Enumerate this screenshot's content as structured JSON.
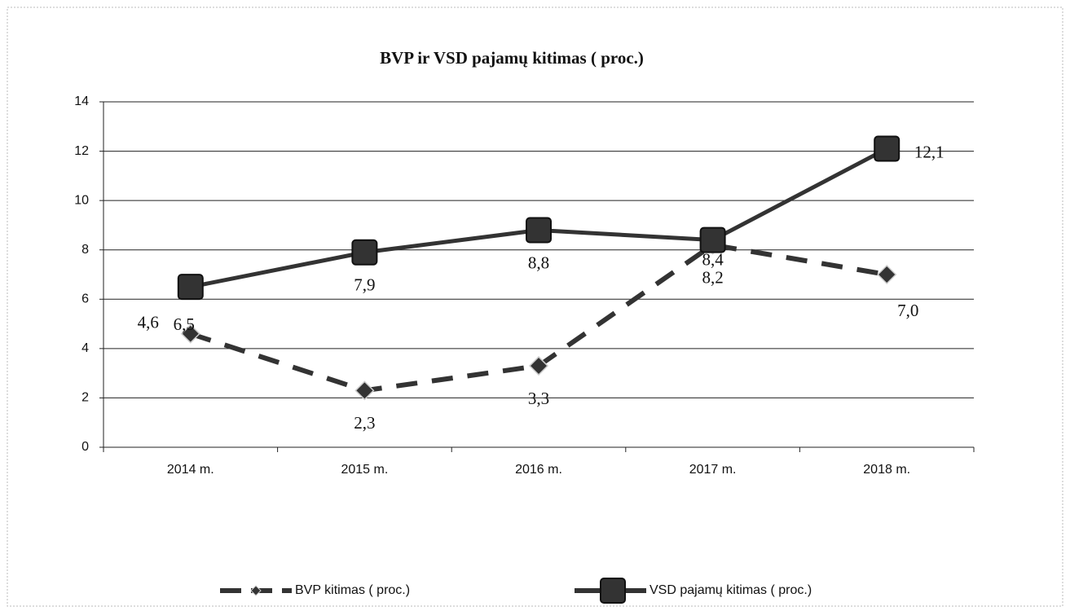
{
  "chart_data": {
    "type": "line",
    "title": "BVP  ir VSD pajamų kitimas ( proc.)",
    "categories": [
      "2014 m.",
      "2015 m.",
      "2016 m.",
      "2017 m.",
      "2018 m."
    ],
    "series": [
      {
        "name": "BVP kitimas ( proc.)",
        "color": "#333333",
        "line_style": "dashed",
        "marker": "diamond",
        "values": [
          4.6,
          2.3,
          3.3,
          8.2,
          7.0
        ],
        "value_labels": [
          "4,6",
          "2,3",
          "3,3",
          "8,2",
          "7,0"
        ]
      },
      {
        "name": "VSD pajamų kitimas ( proc.)",
        "color": "#333333",
        "line_style": "solid",
        "marker": "square",
        "values": [
          6.5,
          7.9,
          8.8,
          8.4,
          12.1
        ],
        "value_labels": [
          "6,5",
          "7,9",
          "8,8",
          "8,4",
          "12,1"
        ]
      }
    ],
    "ylim": [
      0,
      14
    ],
    "yticks": [
      0,
      2,
      4,
      6,
      8,
      10,
      12,
      14
    ],
    "grid": true,
    "legend": "bottom"
  }
}
